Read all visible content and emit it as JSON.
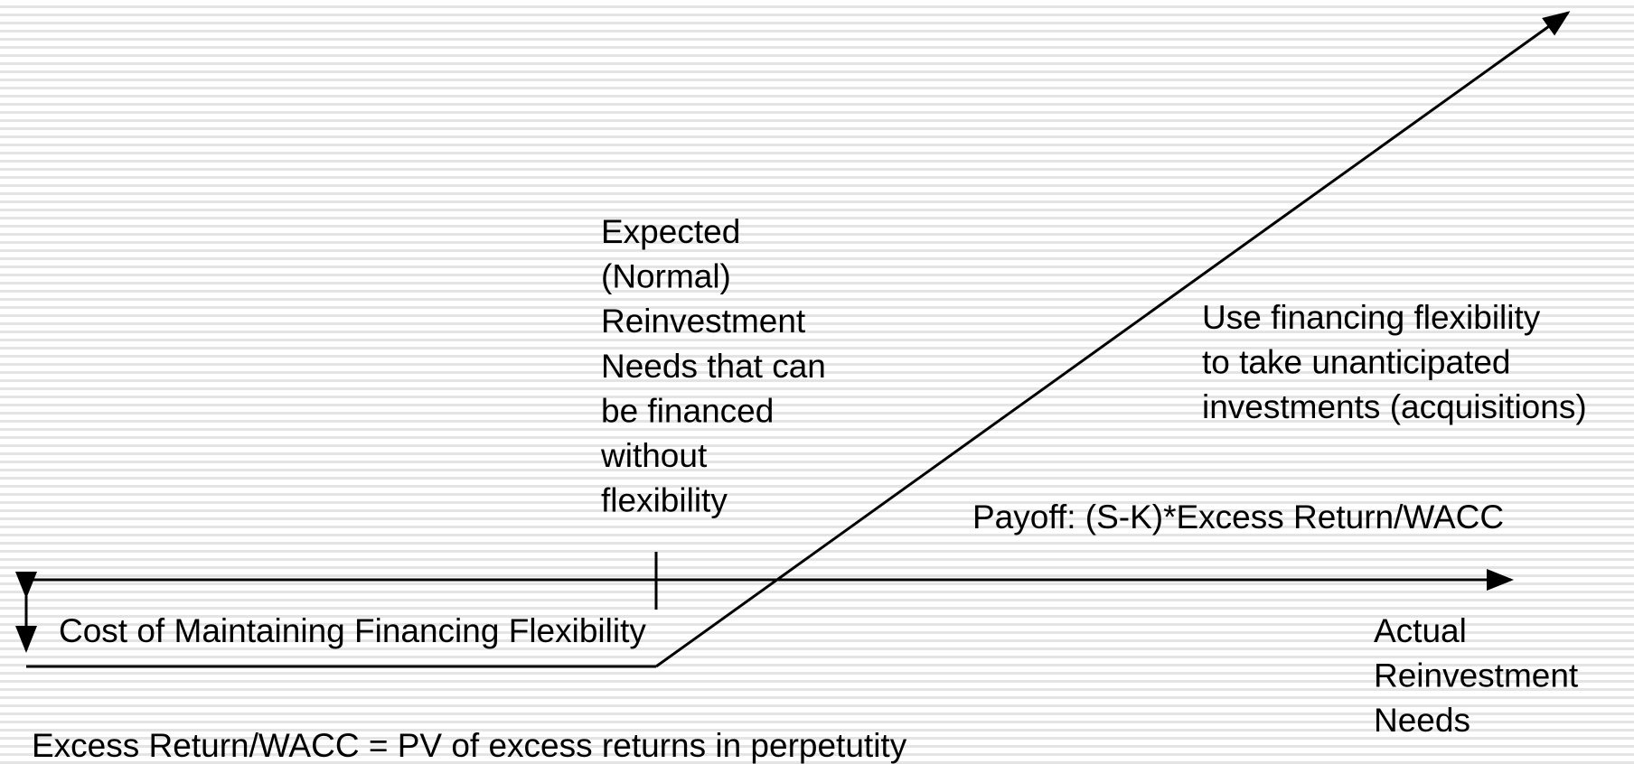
{
  "labels": {
    "expected": [
      "Expected",
      "(Normal)",
      "Reinvestment",
      "Needs that can",
      "be financed",
      "without",
      "flexibility"
    ],
    "use_flexibility": [
      "Use financing flexibility",
      "to take unanticipated",
      "investments (acquisitions)"
    ],
    "payoff": "Payoff: (S-K)*Excess Return/WACC",
    "cost": "Cost of Maintaining Financing Flexibility",
    "x_axis": [
      "Actual",
      "Reinvestment",
      "Needs"
    ],
    "footnote": "Excess Return/WACC = PV of excess returns in perpetutity"
  }
}
